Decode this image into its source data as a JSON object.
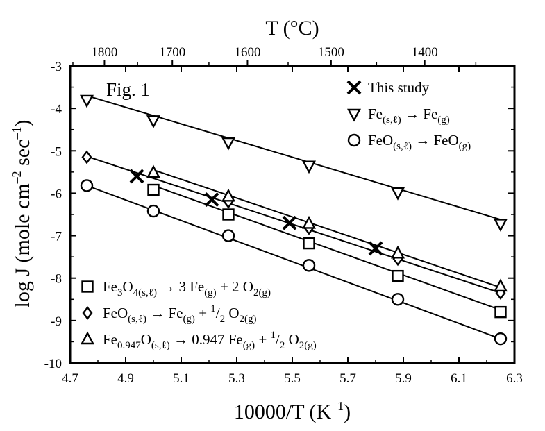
{
  "chart_data": {
    "type": "scatter",
    "figure_label": "Fig. 1",
    "xlabel": "10000/T (K",
    "xlabel_sup": "–1",
    "xlabel_close": ")",
    "top_xlabel": "T (°C)",
    "ylabel": "log J (mole cm",
    "ylabel_sup1": "–2",
    "ylabel_mid": " sec",
    "ylabel_sup2": "–1",
    "ylabel_close": ")",
    "xlim": [
      4.7,
      6.3
    ],
    "ylim": [
      -10,
      -3
    ],
    "x_ticks": [
      "4.7",
      "4.9",
      "5.1",
      "5.3",
      "5.5",
      "5.7",
      "5.9",
      "6.1",
      "6.3"
    ],
    "y_ticks": [
      "-3",
      "-4",
      "-5",
      "-6",
      "-7",
      "-8",
      "-9",
      "-10"
    ],
    "top_ticks": [
      {
        "label": "1800",
        "celsius": 1800
      },
      {
        "label": "1700",
        "celsius": 1700
      },
      {
        "label": "1600",
        "celsius": 1600
      },
      {
        "label": "1500",
        "celsius": 1500
      },
      {
        "label": "1400",
        "celsius": 1400
      }
    ],
    "series": [
      {
        "key": "this_study",
        "name": "This study",
        "marker": "x",
        "points": [
          [
            4.94,
            -5.6
          ],
          [
            5.21,
            -6.15
          ],
          [
            5.49,
            -6.7
          ],
          [
            5.8,
            -7.3
          ]
        ]
      },
      {
        "key": "fe",
        "name_parts": [
          "Fe",
          "(s,ℓ)",
          " → Fe",
          "(g)"
        ],
        "marker": "triangle-down",
        "points": [
          [
            4.76,
            -3.8
          ],
          [
            5.0,
            -4.28
          ],
          [
            5.27,
            -4.8
          ],
          [
            5.56,
            -5.35
          ],
          [
            5.88,
            -5.98
          ],
          [
            6.25,
            -6.72
          ]
        ],
        "fit": [
          [
            4.76,
            -3.7
          ],
          [
            6.25,
            -6.62
          ]
        ]
      },
      {
        "key": "feo_gas",
        "name_parts": [
          "FeO",
          "(s,ℓ)",
          " → FeO",
          "(g)"
        ],
        "marker": "circle",
        "points": [
          [
            4.76,
            -5.82
          ],
          [
            5.0,
            -6.42
          ],
          [
            5.27,
            -7.0
          ],
          [
            5.56,
            -7.7
          ],
          [
            5.88,
            -8.5
          ],
          [
            6.25,
            -9.43
          ]
        ],
        "fit": [
          [
            4.76,
            -5.82
          ],
          [
            6.25,
            -9.43
          ]
        ]
      },
      {
        "key": "fe3o4",
        "name_parts": [
          "Fe",
          "3",
          "O",
          "4(s,ℓ)",
          " → 3 Fe",
          "(g)",
          " + 2 O",
          "2(g)"
        ],
        "marker": "square",
        "points": [
          [
            5.0,
            -5.92
          ],
          [
            5.27,
            -6.5
          ],
          [
            5.56,
            -7.18
          ],
          [
            5.88,
            -7.95
          ],
          [
            6.25,
            -8.8
          ]
        ],
        "fit": [
          [
            5.0,
            -5.82
          ],
          [
            6.25,
            -8.75
          ]
        ]
      },
      {
        "key": "feo_fe",
        "name_parts": [
          "FeO",
          "(s,ℓ)",
          " → Fe",
          "(g)",
          " + ",
          "1",
          "/",
          "2",
          " O",
          "2(g)"
        ],
        "marker": "diamond",
        "points": [
          [
            4.76,
            -5.15
          ],
          [
            5.27,
            -6.2
          ],
          [
            5.56,
            -6.82
          ],
          [
            5.88,
            -7.55
          ],
          [
            6.25,
            -8.35
          ]
        ],
        "fit": [
          [
            4.76,
            -5.13
          ],
          [
            6.25,
            -8.35
          ]
        ]
      },
      {
        "key": "fe0947o",
        "name_parts": [
          "Fe",
          "0.947",
          "O",
          "(s,ℓ)",
          " → 0.947 Fe",
          "(g)",
          " + ",
          "1",
          "/",
          "2",
          " O",
          "2(g)"
        ],
        "marker": "triangle-up",
        "points": [
          [
            5.0,
            -5.52
          ],
          [
            5.27,
            -6.08
          ],
          [
            5.56,
            -6.72
          ],
          [
            5.88,
            -7.42
          ],
          [
            6.25,
            -8.2
          ]
        ],
        "fit": [
          [
            5.0,
            -5.45
          ],
          [
            6.25,
            -8.22
          ]
        ]
      }
    ],
    "legend_top_right": [
      "this_study",
      "fe",
      "feo_gas"
    ],
    "legend_bottom_left": [
      "fe3o4",
      "feo_fe",
      "fe0947o"
    ]
  }
}
